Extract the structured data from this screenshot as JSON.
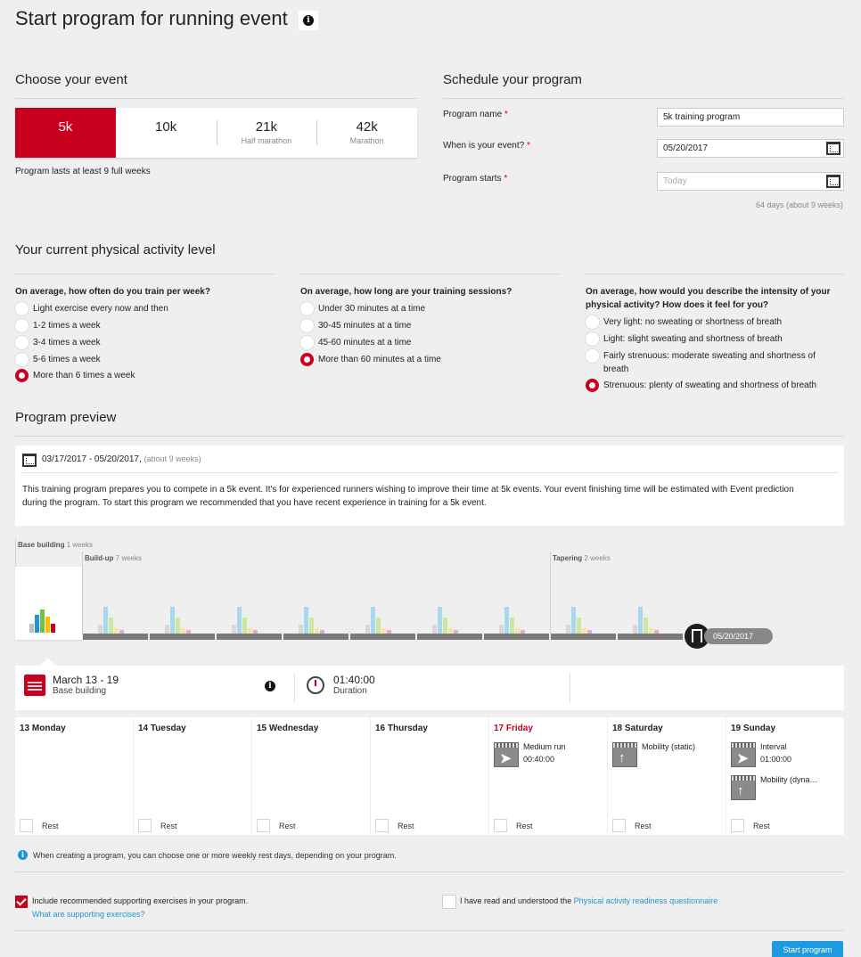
{
  "page": {
    "title": "Start program for running event"
  },
  "event": {
    "heading": "Choose your event",
    "tabs": [
      {
        "label": "5k",
        "sub": "",
        "active": true
      },
      {
        "label": "10k",
        "sub": "",
        "active": false
      },
      {
        "label": "21k",
        "sub": "Half marathon",
        "active": false
      },
      {
        "label": "42k",
        "sub": "Marathon",
        "active": false
      }
    ],
    "duration_note": "Program lasts at least 9 full weeks"
  },
  "schedule": {
    "heading": "Schedule your program",
    "name_label": "Program name",
    "name_value": "5k training program",
    "event_label": "When is your event?",
    "event_value": "05/20/2017",
    "start_label": "Program starts",
    "start_placeholder": "Today",
    "required_mark": "*",
    "days_note": "64 days (about 9 weeks)"
  },
  "activity": {
    "heading": "Your current physical activity level",
    "q1": "On average, how often do you train per week?",
    "q1_options": [
      "Light exercise every now and then",
      "1-2 times a week",
      "3-4 times a week",
      "5-6 times a week",
      "More than 6 times a week"
    ],
    "q1_selected": 4,
    "q2": "On average, how long are your training sessions?",
    "q2_options": [
      "Under 30 minutes at a time",
      "30-45 minutes at a time",
      "45-60 minutes at a time",
      "More than 60 minutes at a time"
    ],
    "q2_selected": 3,
    "q3_line1": "On average, how would you describe the intensity of your",
    "q3_line2": "physical activity? How does it feel for you?",
    "q3_options": [
      "Very light: no sweating or shortness of breath",
      "Light: slight sweating and shortness of breath",
      "Fairly strenuous: moderate sweating and shortness of",
      "Strenuous: plenty of sweating and shortness of breath"
    ],
    "q3_option3_cont": "breath",
    "q3_selected": 3
  },
  "preview": {
    "heading": "Program preview",
    "range": "03/17/2017 - 05/20/2017,",
    "range_note": "(about 9 weeks)",
    "desc_line1": "This training program prepares you to compete in a 5k event. It's for experienced runners wishing to improve their time at 5k events. Your event finishing time will be estimated with Event prediction",
    "desc_line2": "during the program. To start this program we recommended that you have recent experience in training for a 5k event.",
    "phases": [
      {
        "name": "Base building",
        "weeks": "1 weeks"
      },
      {
        "name": "Build-up",
        "weeks": "7 weeks"
      },
      {
        "name": "Tapering",
        "weeks": "2 weeks"
      }
    ],
    "end_date": "05/20/2017",
    "colors": {
      "grey": "#d8d8d8",
      "blue": "#a8d8ee",
      "green": "#cce8a0",
      "yellow": "#f5e6a8",
      "pink": "#e8a8c8"
    }
  },
  "week_summary": {
    "dates": "March 13 - 19",
    "phase": "Base building",
    "duration": "01:40:00",
    "duration_label": "Duration"
  },
  "days": [
    {
      "label": "13 Monday",
      "today": false,
      "rest": "Rest",
      "workouts": []
    },
    {
      "label": "14 Tuesday",
      "today": false,
      "rest": "Rest",
      "workouts": []
    },
    {
      "label": "15 Wednesday",
      "today": false,
      "rest": "Rest",
      "workouts": []
    },
    {
      "label": "16 Thursday",
      "today": false,
      "rest": "Rest",
      "workouts": []
    },
    {
      "label": "17 Friday",
      "today": true,
      "rest": "Rest",
      "workouts": [
        {
          "name": "Medium run",
          "time": "00:40:00",
          "icon": "running-icon"
        }
      ]
    },
    {
      "label": "18 Saturday",
      "today": false,
      "rest": "Rest",
      "workouts": [
        {
          "name": "Mobility (static)",
          "time": "",
          "icon": "stretching-icon"
        }
      ]
    },
    {
      "label": "19 Sunday",
      "today": false,
      "rest": "Rest",
      "workouts": [
        {
          "name": "Interval",
          "time": "01:00:00",
          "icon": "running-icon"
        },
        {
          "name": "Mobility (dyna…",
          "time": "",
          "icon": "stretching-icon"
        }
      ]
    }
  ],
  "footer": {
    "note": "When creating a program, you can choose one or more weekly rest days, depending on your program.",
    "support_label": "Include recommended supporting exercises in your program.",
    "support_link": "What are supporting exercises?",
    "par_label": "I have read and understood the",
    "par_link": "Physical activity readiness questionnaire",
    "start_button": "Start program"
  }
}
